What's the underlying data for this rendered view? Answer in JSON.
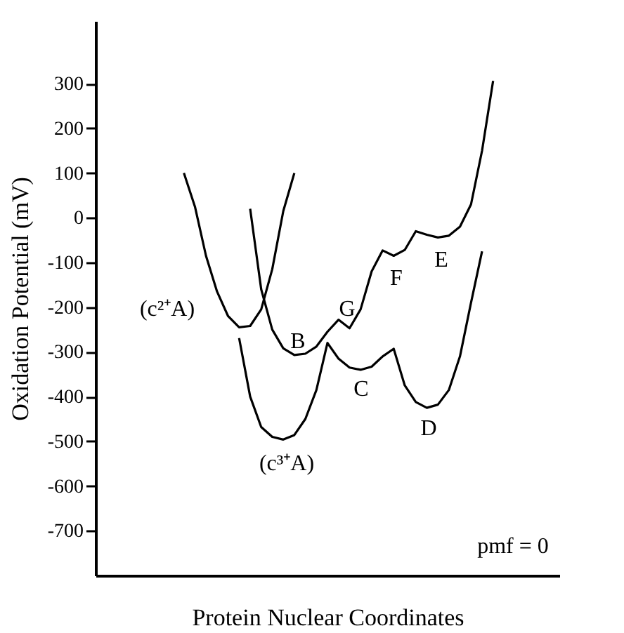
{
  "chart_data": {
    "type": "line",
    "xlabel": "Protein Nuclear Coordinates",
    "ylabel": "Oxidation Potential (mV)",
    "categories": [
      null,
      null,
      null,
      null,
      null,
      null,
      null,
      null,
      null,
      null,
      null,
      null,
      null,
      null,
      null,
      null,
      null,
      null,
      null,
      null,
      null,
      null,
      null,
      null,
      null,
      null,
      null,
      null,
      null,
      null,
      null,
      null,
      null,
      null,
      null,
      null,
      null,
      null,
      null,
      null,
      null,
      null,
      null
    ],
    "ylim": [
      -800,
      440
    ],
    "yticks": [
      300,
      200,
      100,
      0,
      -100,
      -200,
      -300,
      -400,
      -500,
      -600,
      -700
    ],
    "tick_labels": "y",
    "grid": false,
    "marker": "none",
    "line_style": "solid",
    "series": [
      {
        "color": "#000000",
        "values": [
          null,
          null,
          null,
          null,
          null,
          null,
          null,
          null,
          100,
          25,
          -85,
          -165,
          -220,
          -245,
          -242,
          -205,
          -115,
          15,
          100,
          null,
          null,
          null,
          null,
          null,
          null,
          null,
          null,
          null,
          null,
          null,
          null,
          null,
          null,
          null,
          null,
          null,
          null,
          null,
          null,
          null,
          null,
          null,
          null
        ]
      },
      {
        "color": "#000000",
        "values": [
          null,
          null,
          null,
          null,
          null,
          null,
          null,
          null,
          null,
          null,
          null,
          null,
          null,
          null,
          20,
          -160,
          -250,
          -292,
          -307,
          -304,
          -288,
          -255,
          -228,
          -247,
          -205,
          -120,
          -73,
          -85,
          -72,
          -30,
          -38,
          -44,
          -40,
          -20,
          30,
          150,
          306,
          null,
          null,
          null,
          null,
          null,
          null
        ]
      },
      {
        "color": "#000000",
        "values": [
          null,
          null,
          null,
          null,
          null,
          null,
          null,
          null,
          null,
          null,
          null,
          null,
          null,
          -269,
          -400,
          -468,
          -490,
          -496,
          -486,
          -450,
          -385,
          -280,
          -315,
          -335,
          -340,
          -333,
          -310,
          -293,
          -375,
          -412,
          -425,
          -418,
          -385,
          -310,
          -190,
          -75,
          null,
          null,
          null,
          null,
          null,
          null,
          null
        ]
      }
    ],
    "annotations": [
      "(c²⁺A)",
      "(c³⁺A)",
      "B",
      "C",
      "D",
      "E",
      "F",
      "G",
      "pmf = 0"
    ]
  }
}
